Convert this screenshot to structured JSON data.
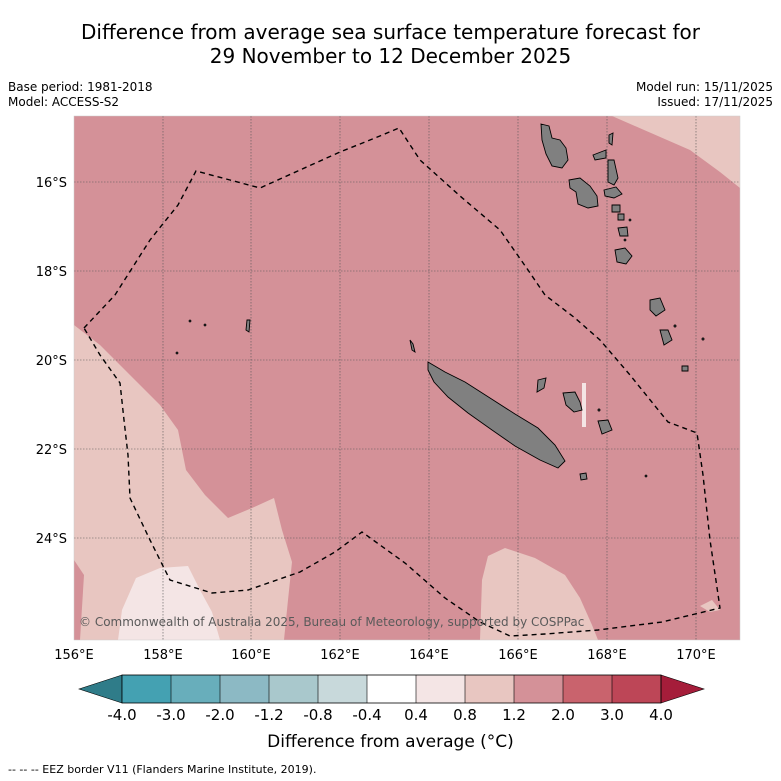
{
  "title_line1": "Difference from average sea surface temperature forecast for",
  "title_line2": "29 November to 12 December 2025",
  "meta": {
    "base_period": "Base period: 1981-2018",
    "model": "Model: ACCESS-S2",
    "model_run": "Model run: 15/11/2025",
    "issued": "Issued: 17/11/2025"
  },
  "map": {
    "lat_labels": [
      "16°S",
      "18°S",
      "20°S",
      "22°S",
      "24°S"
    ],
    "lon_labels": [
      "156°E",
      "158°E",
      "160°E",
      "162°E",
      "164°E",
      "166°E",
      "168°E",
      "170°E"
    ],
    "copyright": "© Commonwealth of Australia 2025, Bureau of Meteorology, supported by COSPPac"
  },
  "colorbar": {
    "ticks": [
      "-4.0",
      "-3.0",
      "-2.0",
      "-1.2",
      "-0.8",
      "-0.4",
      "0.4",
      "0.8",
      "1.2",
      "2.0",
      "3.0",
      "4.0"
    ],
    "colors": {
      "lt_-4": "#2f7c89",
      "c1": "#44a1b2",
      "c2": "#68aebb",
      "c3": "#8cb9c4",
      "c4": "#a9c8cc",
      "c5": "#c8d9db",
      "c6": "#ffffff",
      "c7": "#f4e5e5",
      "c8": "#e8c6c1",
      "c9": "#d49198",
      "c10": "#c9636d",
      "c11": "#bd4657",
      "gt_4": "#a51d3a"
    },
    "label": "Difference from average (°C)"
  },
  "footer": "--  --  -- EEZ border V11 (Flanders Marine Institute, 2019)."
}
